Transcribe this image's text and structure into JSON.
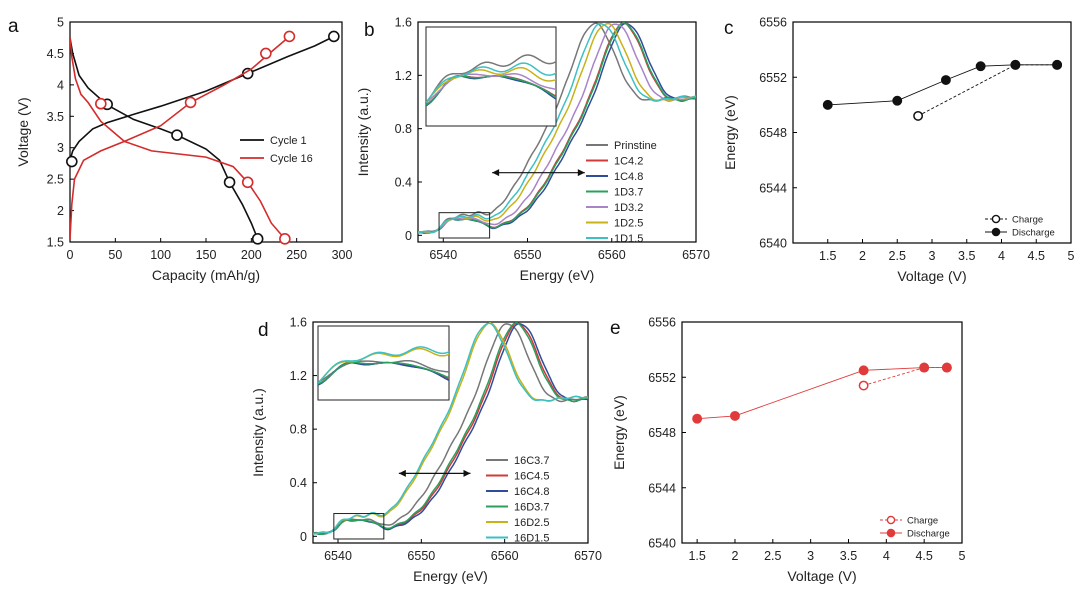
{
  "chart_data": [
    {
      "panel": "a",
      "type": "line",
      "xlabel": "Capacity (mAh/g)",
      "ylabel": "Voltage (V)",
      "xlim": [
        0,
        300
      ],
      "ylim": [
        1.5,
        5
      ],
      "xticks": [
        0,
        50,
        100,
        150,
        200,
        250,
        300
      ],
      "yticks": [
        1.5,
        2,
        2.5,
        3,
        3.5,
        4,
        4.5,
        5
      ],
      "xtick_labels": [
        "0",
        "50",
        "100",
        "150",
        "200",
        "250",
        "300"
      ],
      "ytick_labels": [
        "1.5",
        "2",
        "2.5",
        "3",
        "3.5",
        "4",
        "4.5",
        "5"
      ],
      "legend": "center-right",
      "series": [
        {
          "name": "Cycle 1",
          "color": "#111111",
          "charge": [
            [
              0,
              2.8
            ],
            [
              3,
              2.95
            ],
            [
              10,
              3.1
            ],
            [
              25,
              3.3
            ],
            [
              41,
              3.4
            ],
            [
              70,
              3.53
            ],
            [
              100,
              3.66
            ],
            [
              150,
              3.9
            ],
            [
              196,
              4.18
            ],
            [
              240,
              4.45
            ],
            [
              270,
              4.62
            ],
            [
              291,
              4.77
            ]
          ],
          "discharge": [
            [
              0,
              4.75
            ],
            [
              3,
              4.5
            ],
            [
              10,
              4.15
            ],
            [
              20,
              3.95
            ],
            [
              41,
              3.68
            ],
            [
              70,
              3.45
            ],
            [
              100,
              3.3
            ],
            [
              118,
              3.2
            ],
            [
              150,
              2.98
            ],
            [
              165,
              2.8
            ],
            [
              176,
              2.45
            ],
            [
              190,
              2.1
            ],
            [
              200,
              1.8
            ],
            [
              207,
              1.55
            ]
          ],
          "markers": [
            [
              2,
              2.78
            ],
            [
              41,
              3.69
            ],
            [
              196,
              4.18
            ],
            [
              291,
              4.77
            ],
            [
              118,
              3.2
            ],
            [
              176,
              2.45
            ],
            [
              207,
              1.55
            ]
          ]
        },
        {
          "name": "Cycle 16",
          "color": "#d42b2b",
          "charge": [
            [
              0,
              1.55
            ],
            [
              2,
              2.1
            ],
            [
              5,
              2.5
            ],
            [
              15,
              2.8
            ],
            [
              34,
              2.95
            ],
            [
              60,
              3.1
            ],
            [
              100,
              3.35
            ],
            [
              133,
              3.72
            ],
            [
              170,
              4.0
            ],
            [
              200,
              4.25
            ],
            [
              220,
              4.5
            ],
            [
              242,
              4.77
            ]
          ],
          "discharge": [
            [
              0,
              4.75
            ],
            [
              2,
              4.45
            ],
            [
              6,
              4.1
            ],
            [
              12,
              3.85
            ],
            [
              20,
              3.72
            ],
            [
              34,
              3.42
            ],
            [
              60,
              3.1
            ],
            [
              90,
              2.95
            ],
            [
              150,
              2.85
            ],
            [
              180,
              2.7
            ],
            [
              196,
              2.45
            ],
            [
              210,
              2.15
            ],
            [
              222,
              1.8
            ],
            [
              237,
              1.55
            ]
          ],
          "markers": [
            [
              34,
              3.7
            ],
            [
              133,
              3.72
            ],
            [
              216,
              4.5
            ],
            [
              242,
              4.77
            ],
            [
              196,
              2.45
            ],
            [
              237,
              1.55
            ]
          ]
        }
      ]
    },
    {
      "panel": "b",
      "type": "line",
      "xlabel": "Energy (eV)",
      "ylabel": "Intensity (a.u.)",
      "xlim": [
        6537,
        6570
      ],
      "ylim": [
        -0.05,
        1.6
      ],
      "xticks": [
        6540,
        6550,
        6560,
        6570
      ],
      "yticks": [
        0,
        0.4,
        0.8,
        1.2,
        1.6
      ],
      "xtick_labels": [
        "6540",
        "6550",
        "6560",
        "6570"
      ],
      "ytick_labels": [
        "0",
        "0.4",
        "0.8",
        "1.2",
        "1.6"
      ],
      "legend": "right",
      "series": [
        {
          "name": "Prinstine",
          "color": "#777777",
          "edge_shift": -3.4
        },
        {
          "name": "1C4.2",
          "color": "#d03a3a",
          "edge_shift": 0.0
        },
        {
          "name": "1C4.8",
          "color": "#2f4d9b",
          "edge_shift": 0.4
        },
        {
          "name": "1D3.7",
          "color": "#2aa05c",
          "edge_shift": 0.1
        },
        {
          "name": "1D3.2",
          "color": "#a884c8",
          "edge_shift": -0.9
        },
        {
          "name": "1D2.5",
          "color": "#c8b21a",
          "edge_shift": -2.0
        },
        {
          "name": "1D1.5",
          "color": "#3cc0c4",
          "edge_shift": -2.6
        }
      ]
    },
    {
      "panel": "c",
      "type": "scatter",
      "xlabel": "Voltage (V)",
      "ylabel": "Energy (eV)",
      "xlim": [
        1,
        5
      ],
      "ylim": [
        6540,
        6556
      ],
      "xticks": [
        1.5,
        2,
        2.5,
        3,
        3.5,
        4,
        4.5,
        5
      ],
      "yticks": [
        6540,
        6544,
        6548,
        6552,
        6556
      ],
      "xtick_labels": [
        "1.5",
        "2",
        "2.5",
        "3",
        "3.5",
        "4",
        "4.5",
        "5"
      ],
      "ytick_labels": [
        "6540",
        "6544",
        "6548",
        "6552",
        "6556"
      ],
      "legend": "bottom-right",
      "series": [
        {
          "name": "Charge",
          "color": "#111111",
          "filled": false,
          "dashed": true,
          "x": [
            2.8,
            4.2,
            4.8
          ],
          "y": [
            6549.2,
            6552.9,
            6552.9
          ]
        },
        {
          "name": "Discharge",
          "color": "#111111",
          "filled": true,
          "dashed": false,
          "x": [
            1.5,
            2.5,
            3.2,
            3.7,
            4.2,
            4.8
          ],
          "y": [
            6550.0,
            6550.3,
            6551.8,
            6552.8,
            6552.9,
            6552.9
          ]
        }
      ]
    },
    {
      "panel": "d",
      "type": "line",
      "xlabel": "Energy (eV)",
      "ylabel": "Intensity (a.u.)",
      "xlim": [
        6537,
        6570
      ],
      "ylim": [
        -0.05,
        1.6
      ],
      "xticks": [
        6540,
        6550,
        6560,
        6570
      ],
      "yticks": [
        0,
        0.4,
        0.8,
        1.2,
        1.6
      ],
      "xtick_labels": [
        "6540",
        "6550",
        "6560",
        "6570"
      ],
      "ytick_labels": [
        "0",
        "0.4",
        "0.8",
        "1.2",
        "1.6"
      ],
      "legend": "bottom-right",
      "series": [
        {
          "name": "16C3.7",
          "color": "#777777",
          "edge_shift": -1.0
        },
        {
          "name": "16C4.5",
          "color": "#d03a3a",
          "edge_shift": 0.2
        },
        {
          "name": "16C4.8",
          "color": "#2f4d9b",
          "edge_shift": 0.5
        },
        {
          "name": "16D3.7",
          "color": "#2aa05c",
          "edge_shift": 0.0
        },
        {
          "name": "16D2.5",
          "color": "#c8b21a",
          "edge_shift": -3.2
        },
        {
          "name": "16D1.5",
          "color": "#3cc0c4",
          "edge_shift": -3.4
        }
      ]
    },
    {
      "panel": "e",
      "type": "scatter",
      "xlabel": "Voltage (V)",
      "ylabel": "Energy (eV)",
      "xlim": [
        1.3,
        5
      ],
      "ylim": [
        6540,
        6556
      ],
      "xticks": [
        1.5,
        2,
        2.5,
        3,
        3.5,
        4,
        4.5,
        5
      ],
      "yticks": [
        6540,
        6544,
        6548,
        6552,
        6556
      ],
      "xtick_labels": [
        "1.5",
        "2",
        "2.5",
        "3",
        "3.5",
        "4",
        "4.5",
        "5"
      ],
      "ytick_labels": [
        "6540",
        "6544",
        "6548",
        "6552",
        "6556"
      ],
      "legend": "bottom-right",
      "series": [
        {
          "name": "Charge",
          "color": "#e03a3a",
          "filled": false,
          "dashed": true,
          "x": [
            3.7,
            4.5,
            4.8
          ],
          "y": [
            6551.4,
            6552.7,
            6552.7
          ]
        },
        {
          "name": "Discharge",
          "color": "#e03a3a",
          "filled": true,
          "dashed": false,
          "x": [
            1.5,
            2.0,
            3.7,
            4.5,
            4.8
          ],
          "y": [
            6549.0,
            6549.2,
            6552.5,
            6552.7,
            6552.7
          ]
        }
      ]
    }
  ]
}
